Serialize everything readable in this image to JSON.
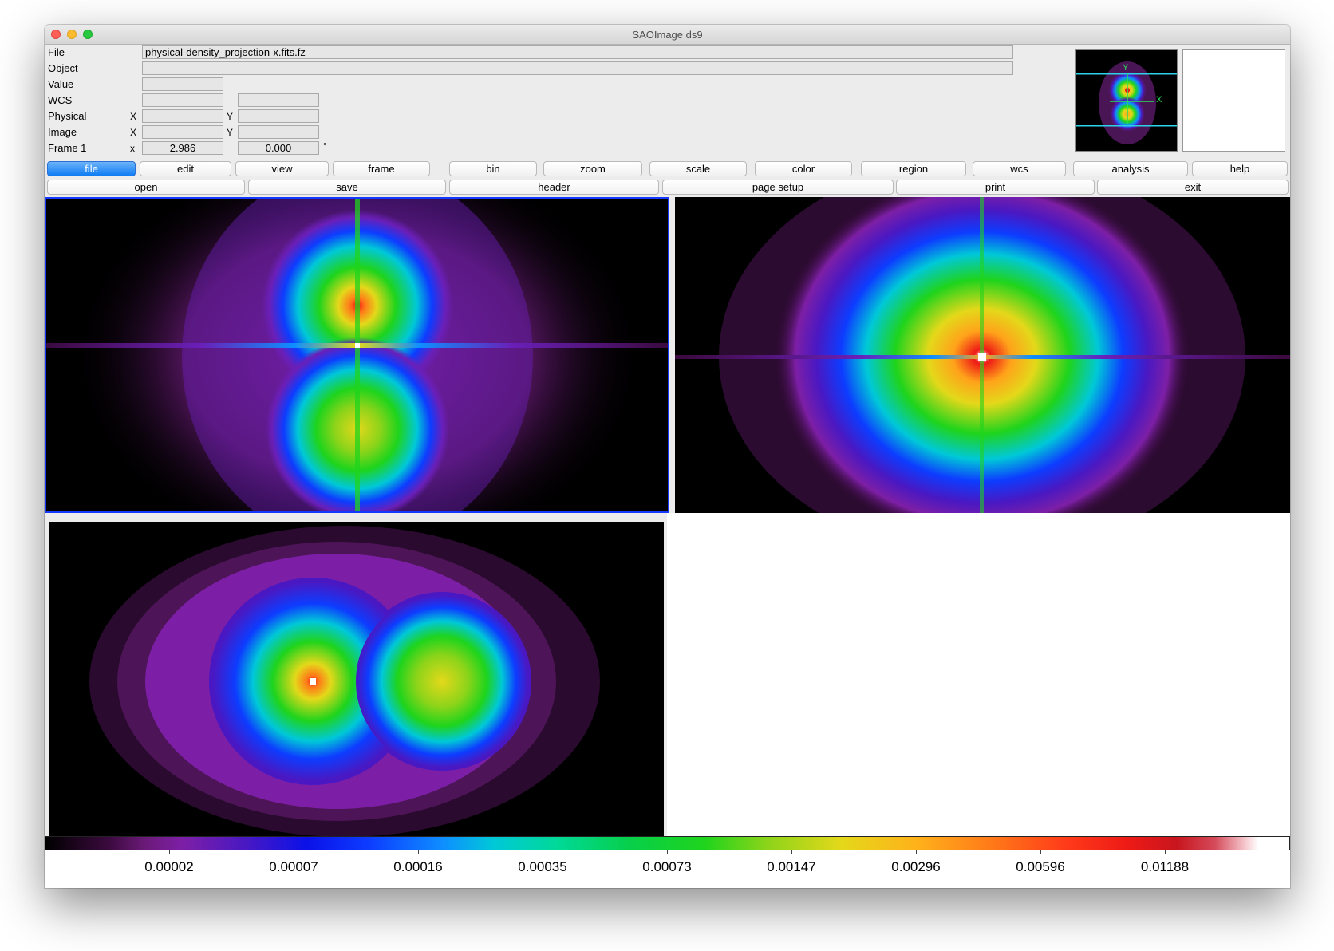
{
  "window": {
    "title": "SAOImage ds9"
  },
  "info": {
    "file_label": "File",
    "file_value": "physical-density_projection-x.fits.fz",
    "object_label": "Object",
    "object_value": "",
    "value_label": "Value",
    "value_value": "",
    "wcs_label": "WCS",
    "physical_label": "Physical",
    "image_label": "Image",
    "frame_label": "Frame 1",
    "x_axis": "X",
    "y_axis": "Y",
    "frame_x_axis": "x",
    "zoom_value": "2.986",
    "angle_value": "0.000",
    "degree_symbol": "°"
  },
  "panner": {
    "y_label": "Y",
    "x_label": "X"
  },
  "menu": {
    "file": "file",
    "edit": "edit",
    "view": "view",
    "frame": "frame",
    "bin": "bin",
    "zoom": "zoom",
    "scale": "scale",
    "color": "color",
    "region": "region",
    "wcs": "wcs",
    "analysis": "analysis",
    "help": "help"
  },
  "submenu": {
    "open": "open",
    "save": "save",
    "header": "header",
    "page_setup": "page setup",
    "print": "print",
    "exit": "exit"
  },
  "colorbar": {
    "labels": [
      "0.00002",
      "0.00007",
      "0.00016",
      "0.00035",
      "0.00073",
      "0.00147",
      "0.00296",
      "0.00596",
      "0.01188"
    ]
  },
  "colors": {
    "accent": "#1478f0",
    "selected_frame_border": "#1438ff",
    "colormap_peak": "#ee1a16"
  }
}
